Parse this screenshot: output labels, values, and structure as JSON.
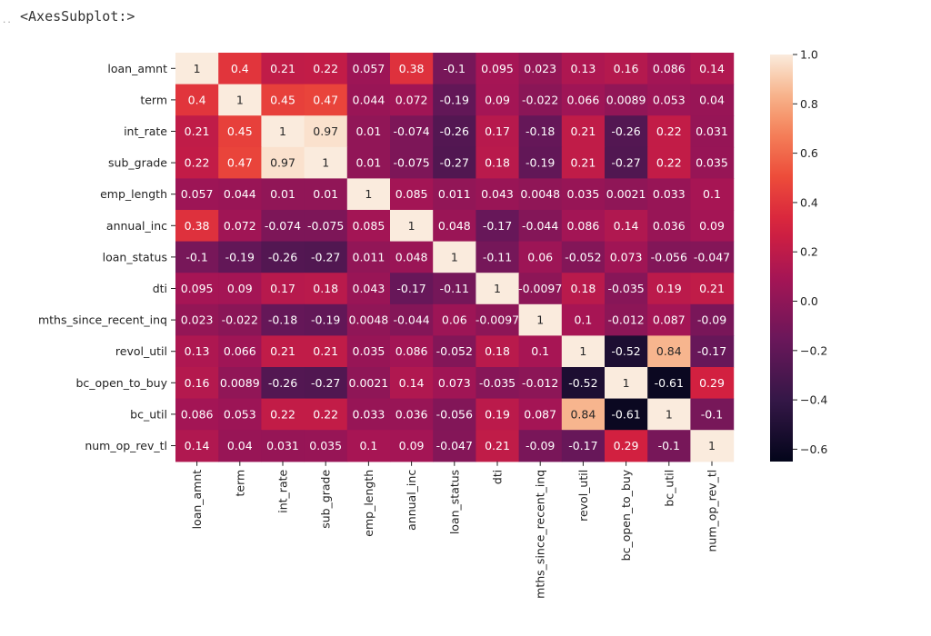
{
  "output_prompt": "<AxesSubplot:>",
  "chart_data": {
    "type": "heatmap",
    "title": "",
    "labels": [
      "loan_amnt",
      "term",
      "int_rate",
      "sub_grade",
      "emp_length",
      "annual_inc",
      "loan_status",
      "dti",
      "mths_since_recent_inq",
      "revol_util",
      "bc_open_to_buy",
      "bc_util",
      "num_op_rev_tl"
    ],
    "matrix": [
      [
        1,
        0.4,
        0.21,
        0.22,
        0.057,
        0.38,
        -0.1,
        0.095,
        0.023,
        0.13,
        0.16,
        0.086,
        0.14
      ],
      [
        0.4,
        1,
        0.45,
        0.47,
        0.044,
        0.072,
        -0.19,
        0.09,
        -0.022,
        0.066,
        0.0089,
        0.053,
        0.04
      ],
      [
        0.21,
        0.45,
        1,
        0.97,
        0.01,
        -0.074,
        -0.26,
        0.17,
        -0.18,
        0.21,
        -0.26,
        0.22,
        0.031
      ],
      [
        0.22,
        0.47,
        0.97,
        1,
        0.01,
        -0.075,
        -0.27,
        0.18,
        -0.19,
        0.21,
        -0.27,
        0.22,
        0.035
      ],
      [
        0.057,
        0.044,
        0.01,
        0.01,
        1,
        0.085,
        0.011,
        0.043,
        0.0048,
        0.035,
        0.0021,
        0.033,
        0.1
      ],
      [
        0.38,
        0.072,
        -0.074,
        -0.075,
        0.085,
        1,
        0.048,
        -0.17,
        -0.044,
        0.086,
        0.14,
        0.036,
        0.09
      ],
      [
        -0.1,
        -0.19,
        -0.26,
        -0.27,
        0.011,
        0.048,
        1,
        -0.11,
        0.06,
        -0.052,
        0.073,
        -0.056,
        -0.047
      ],
      [
        0.095,
        0.09,
        0.17,
        0.18,
        0.043,
        -0.17,
        -0.11,
        1,
        -0.0097,
        0.18,
        -0.035,
        0.19,
        0.21
      ],
      [
        0.023,
        -0.022,
        -0.18,
        -0.19,
        0.0048,
        -0.044,
        0.06,
        -0.0097,
        1,
        0.1,
        -0.012,
        0.087,
        -0.09
      ],
      [
        0.13,
        0.066,
        0.21,
        0.21,
        0.035,
        0.086,
        -0.052,
        0.18,
        0.1,
        1,
        -0.52,
        0.84,
        -0.17
      ],
      [
        0.16,
        0.0089,
        -0.26,
        -0.27,
        0.0021,
        0.14,
        0.073,
        -0.035,
        -0.012,
        -0.52,
        1,
        -0.61,
        0.29
      ],
      [
        0.086,
        0.053,
        0.22,
        0.22,
        0.033,
        0.036,
        -0.056,
        0.19,
        0.087,
        0.84,
        -0.61,
        1,
        -0.1
      ],
      [
        0.14,
        0.04,
        0.031,
        0.035,
        0.1,
        0.09,
        -0.047,
        0.21,
        -0.09,
        -0.17,
        0.29,
        -0.1,
        1
      ]
    ],
    "colorbar": {
      "min": -0.65,
      "max": 1.0,
      "ticks": [
        1.0,
        0.8,
        0.6,
        0.4,
        0.2,
        0.0,
        -0.2,
        -0.4,
        -0.6
      ],
      "tick_labels": [
        "1.0",
        "0.8",
        "0.6",
        "0.4",
        "0.2",
        "0.0",
        "−0.2",
        "−0.4",
        "−0.6"
      ],
      "colormap": "rocket"
    }
  }
}
